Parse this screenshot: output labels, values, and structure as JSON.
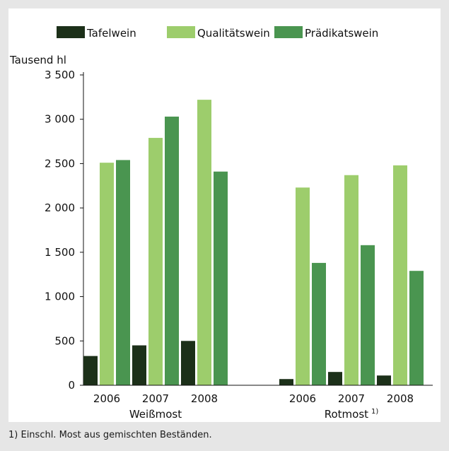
{
  "chart_data": {
    "type": "bar",
    "ylabel": "Tausend hl",
    "ylim": [
      0,
      3500
    ],
    "yticks": [
      0,
      500,
      1000,
      1500,
      2000,
      2500,
      3000,
      3500
    ],
    "ytick_labels": [
      "0",
      "500",
      "1 000",
      "1 500",
      "2 000",
      "2 500",
      "3 000",
      "3 500"
    ],
    "legend_position": "top",
    "groups": [
      {
        "label": "Weißmost",
        "label_note": "",
        "categories": [
          "2006",
          "2007",
          "2008"
        ]
      },
      {
        "label": "Rotmost",
        "label_note": "1)",
        "categories": [
          "2006",
          "2007",
          "2008"
        ]
      }
    ],
    "series": [
      {
        "name": "Tafelwein",
        "color": "#1c3019",
        "values": [
          [
            330,
            450,
            500
          ],
          [
            70,
            150,
            110
          ]
        ]
      },
      {
        "name": "Qualitätswein",
        "color": "#9dcd6c",
        "values": [
          [
            2510,
            2790,
            3220
          ],
          [
            2230,
            2370,
            2480
          ]
        ]
      },
      {
        "name": "Prädikatswein",
        "color": "#4a9550",
        "values": [
          [
            2540,
            3030,
            2410
          ],
          [
            1380,
            1580,
            1290
          ]
        ]
      }
    ],
    "grid": false
  },
  "footnote": "1) Einschl. Most aus gemischten Beständen."
}
